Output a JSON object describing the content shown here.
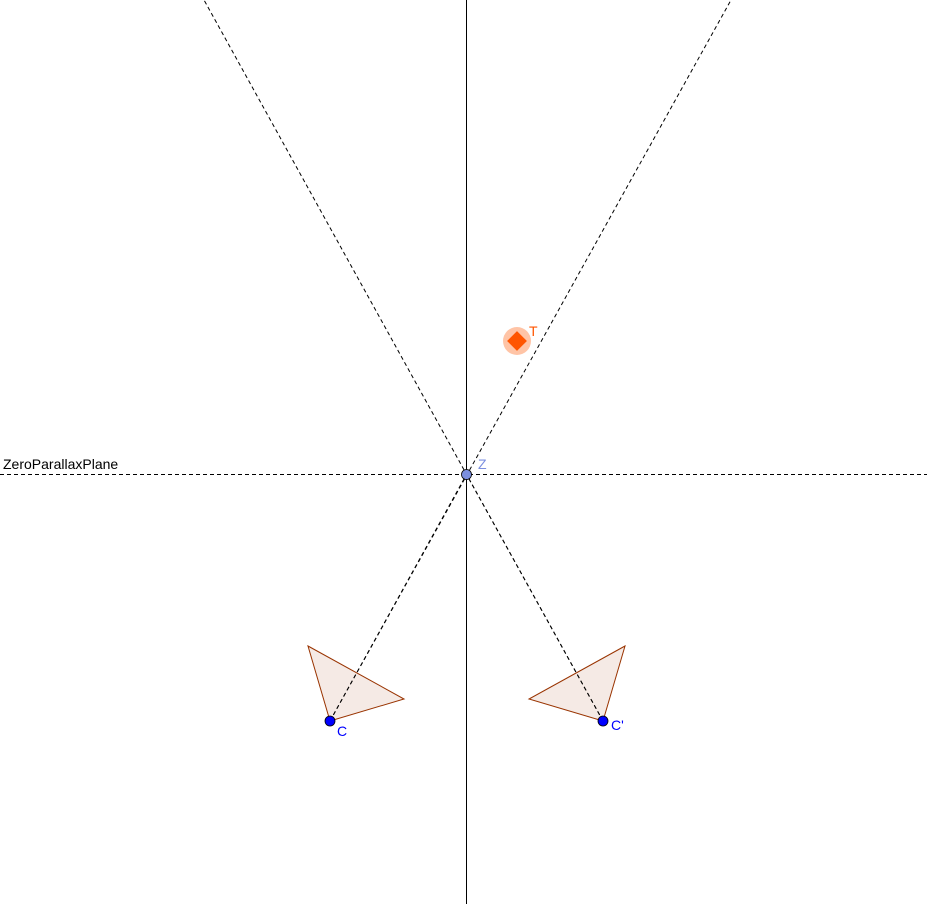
{
  "plane": {
    "label": "ZeroParallaxPlane"
  },
  "points": {
    "z": {
      "label": "Z",
      "color": "#7b8fe0"
    },
    "c": {
      "label": "C",
      "color": "#0000ff"
    },
    "c_prime": {
      "label": "C'",
      "color": "#0000ff"
    },
    "t": {
      "label": "T",
      "color": "#ff5500",
      "icon": "diamond-target-icon"
    }
  },
  "colors": {
    "camera_stroke": "#993300",
    "camera_fill": "rgba(153,51,0,0.1)",
    "line": "#000000"
  }
}
